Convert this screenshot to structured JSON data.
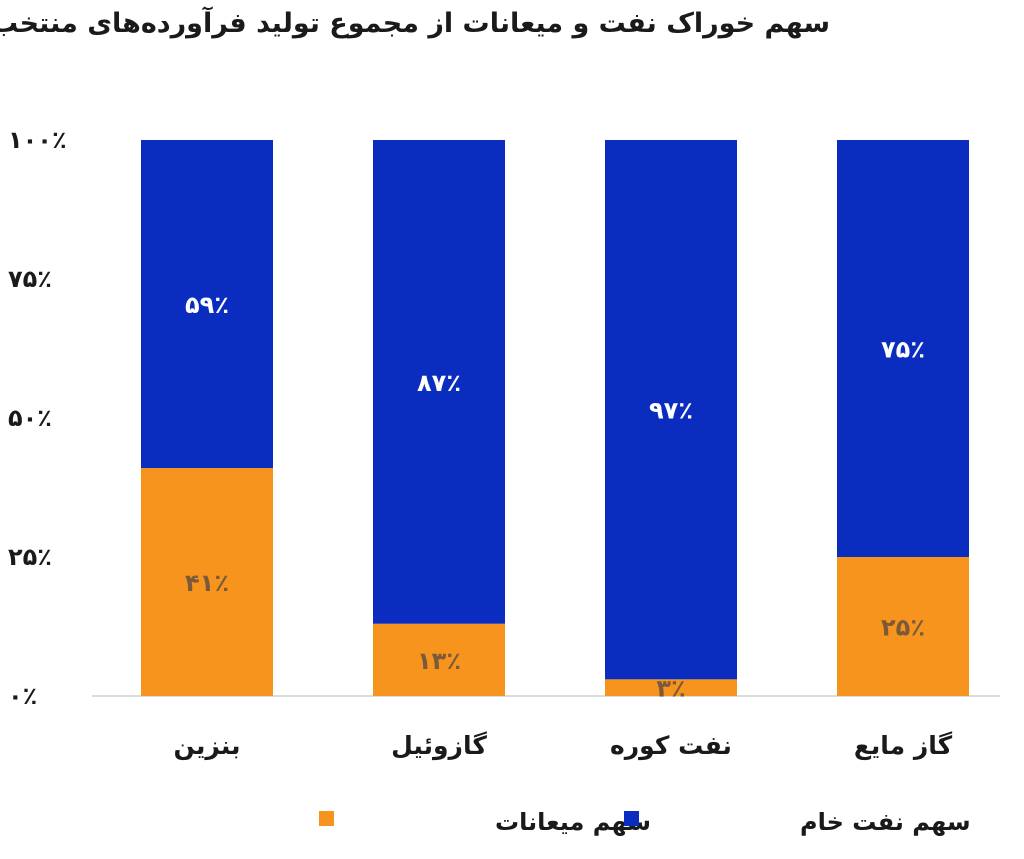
{
  "chart_data": {
    "type": "bar",
    "stacked": true,
    "title": "سهم خوراک نفت و میعانات از مجموع تولید فرآورده‌های منتخب",
    "categories": [
      "بنزین",
      "گازوئیل",
      "نفت کوره",
      "گاز مایع"
    ],
    "series": [
      {
        "name": "سهم میعانات",
        "color": "#f7941d",
        "values": [
          41,
          13,
          3,
          25
        ],
        "labels": [
          "۴۱٪",
          "۱۳٪",
          "۳٪",
          "۲۵٪"
        ]
      },
      {
        "name": "سهم نفت خام",
        "color": "#0a2dbf",
        "values": [
          59,
          87,
          97,
          75
        ],
        "labels": [
          "۵۹٪",
          "۸۷٪",
          "۹۷٪",
          "۷۵٪"
        ]
      }
    ],
    "ylim": [
      0,
      100
    ],
    "yticks": [
      0,
      25,
      50,
      75,
      100
    ],
    "ytick_labels": [
      "۰٪",
      "۲۵٪",
      "۵۰٪",
      "۷۵٪",
      "۱۰۰٪"
    ],
    "grid": false,
    "legend_position": "bottom",
    "colors": {
      "bar_label": "#ffffff",
      "orange_label": "#7a5a3a",
      "axis": "#d0d0d0",
      "text": "#1a1a1a"
    }
  }
}
